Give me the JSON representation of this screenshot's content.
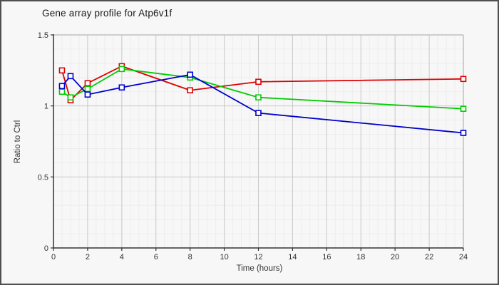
{
  "chart_data": {
    "type": "line",
    "title": "Gene array profile for Atp6v1f",
    "xlabel": "Time (hours)",
    "ylabel": "Ratio to Ctrl",
    "xlim": [
      0,
      24
    ],
    "ylim": [
      0,
      1.5
    ],
    "x_tick_step": 2,
    "x_ticks": [
      0,
      2,
      4,
      6,
      8,
      10,
      12,
      14,
      16,
      18,
      20,
      22,
      24
    ],
    "y_ticks": [
      0,
      0.5,
      1,
      1.5
    ],
    "y_tick_labels": [
      "0",
      "0.5",
      "1",
      "1.5"
    ],
    "x_minor_step": 0.5,
    "y_minor_step": 0.1,
    "grid": "on",
    "legend_position": "none",
    "marker": "open-square",
    "x": [
      0.5,
      1,
      2,
      4,
      8,
      12,
      24
    ],
    "series": [
      {
        "name": "red-series",
        "color": "#dd0000",
        "values": [
          1.25,
          1.04,
          1.16,
          1.28,
          1.11,
          1.17,
          1.19
        ]
      },
      {
        "name": "green-series",
        "color": "#00cc00",
        "values": [
          1.1,
          1.06,
          1.12,
          1.26,
          1.2,
          1.06,
          0.98
        ]
      },
      {
        "name": "blue-series",
        "color": "#0000cc",
        "values": [
          1.14,
          1.21,
          1.08,
          1.13,
          1.22,
          0.95,
          0.81
        ]
      }
    ],
    "style_colors": {
      "background": "#f7f7f7",
      "frame_border": "#4f4f4f",
      "grid_minor": "#ededed",
      "grid_major": "#c9c9c9",
      "plot_outline": "#c0c0c0",
      "axis": "#333333"
    }
  }
}
